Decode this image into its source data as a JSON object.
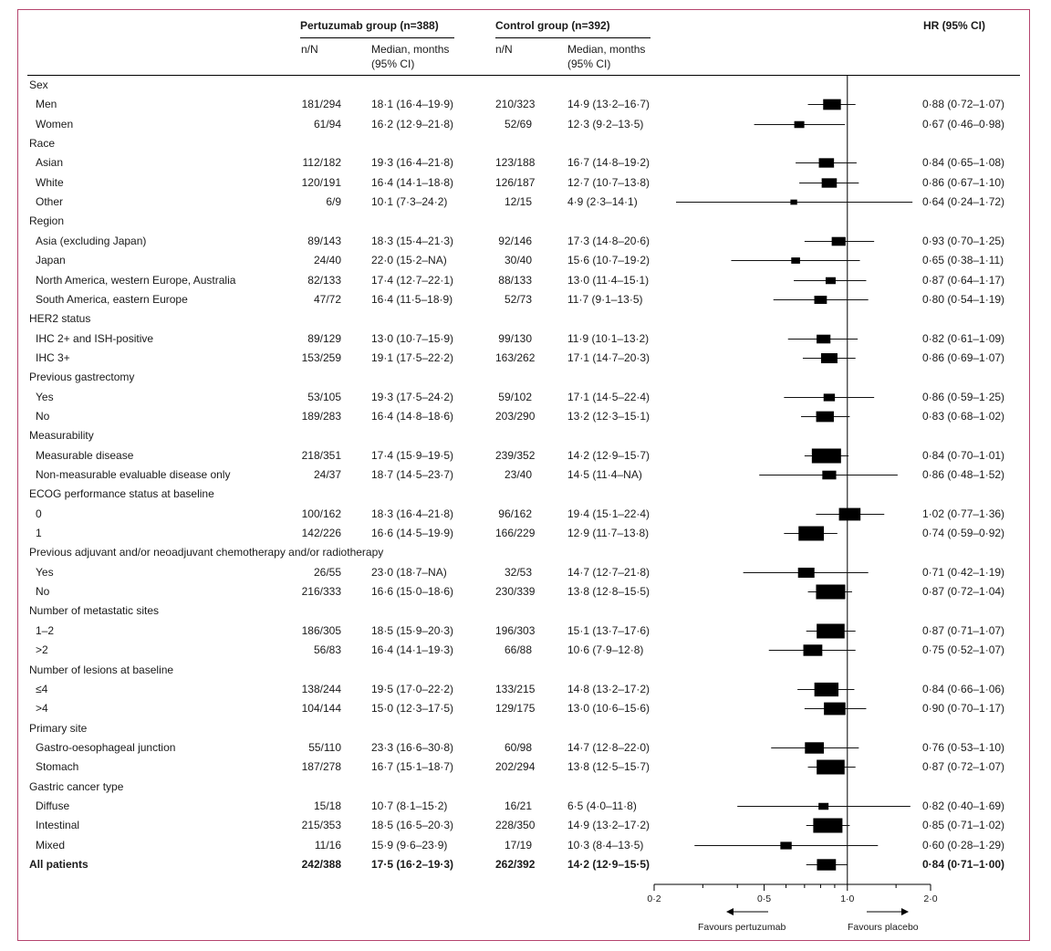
{
  "header": {
    "pertuzumab_group": "Pertuzumab group (n=388)",
    "control_group": "Control  group (n=392)",
    "hr_col": "HR (95% CI)",
    "nN": "n/N",
    "median_line1": "Median, months",
    "median_line2": "(95% CI)"
  },
  "rows": [
    {
      "type": "group",
      "label": "Sex"
    },
    {
      "type": "sub",
      "label": "Men",
      "p_n": "181/294",
      "p_med": "18·1 (16·4–19·9)",
      "c_n": "210/323",
      "c_med": "14·9 (13·2–16·7)",
      "hr_text": "0·88 (0·72–1·07)",
      "hr": 0.88,
      "lo": 0.72,
      "hi": 1.07,
      "w": 0.55
    },
    {
      "type": "sub",
      "label": "Women",
      "p_n": "61/94",
      "p_med": "16·2 (12·9–21·8)",
      "c_n": "52/69",
      "c_med": "12·3 (9·2–13·5)",
      "hr_text": "0·67 (0·46–0·98)",
      "hr": 0.67,
      "lo": 0.46,
      "hi": 0.98,
      "w": 0.25
    },
    {
      "type": "group",
      "label": "Race"
    },
    {
      "type": "sub",
      "label": "Asian",
      "p_n": "112/182",
      "p_med": "19·3 (16·4–21·8)",
      "c_n": "123/188",
      "c_med": "16·7 (14·8–19·2)",
      "hr_text": "0·84 (0·65–1·08)",
      "hr": 0.84,
      "lo": 0.65,
      "hi": 1.08,
      "w": 0.45
    },
    {
      "type": "sub",
      "label": "White",
      "p_n": "120/191",
      "p_med": "16·4 (14·1–18·8)",
      "c_n": "126/187",
      "c_med": "12·7 (10·7–13·8)",
      "hr_text": "0·86 (0·67–1·10)",
      "hr": 0.86,
      "lo": 0.67,
      "hi": 1.1,
      "w": 0.45
    },
    {
      "type": "sub",
      "label": "Other",
      "p_n": "6/9",
      "p_med": "10·1 (7·3–24·2)",
      "c_n": "12/15",
      "c_med": "4·9 (2·3–14·1)",
      "hr_text": "0·64 (0·24–1·72)",
      "hr": 0.64,
      "lo": 0.24,
      "hi": 1.72,
      "w": 0.12
    },
    {
      "type": "group",
      "label": "Region"
    },
    {
      "type": "sub",
      "label": "Asia (excluding Japan)",
      "p_n": "89/143",
      "p_med": "18·3 (15·4–21·3)",
      "c_n": "92/146",
      "c_med": "17·3 (14·8–20·6)",
      "hr_text": "0·93 (0·70–1·25)",
      "hr": 0.93,
      "lo": 0.7,
      "hi": 1.25,
      "w": 0.4
    },
    {
      "type": "sub",
      "label": "Japan",
      "p_n": "24/40",
      "p_med": "22·0 (15·2–NA)",
      "c_n": "30/40",
      "c_med": "15·6 (10·7–19·2)",
      "hr_text": "0·65 (0·38–1·11)",
      "hr": 0.65,
      "lo": 0.38,
      "hi": 1.11,
      "w": 0.2
    },
    {
      "type": "sub",
      "label": "North America, western Europe, Australia",
      "p_n": "82/133",
      "p_med": "17·4 (12·7–22·1)",
      "c_n": "88/133",
      "c_med": "13·0 (11·4–15·1)",
      "hr_text": "0·87 (0·64–1·17)",
      "hr": 0.87,
      "lo": 0.64,
      "hi": 1.17,
      "w": 0.25
    },
    {
      "type": "sub",
      "label": "South America, eastern Europe",
      "p_n": "47/72",
      "p_med": "16·4 (11·5–18·9)",
      "c_n": "52/73",
      "c_med": "11·7 (9·1–13·5)",
      "hr_text": "0·80 (0·54–1·19)",
      "hr": 0.8,
      "lo": 0.54,
      "hi": 1.19,
      "w": 0.35
    },
    {
      "type": "group",
      "label": "HER2 status"
    },
    {
      "type": "sub",
      "label": "IHC 2+ and ISH-positive",
      "p_n": "89/129",
      "p_med": "13·0 (10·7–15·9)",
      "c_n": "99/130",
      "c_med": "11·9 (10·1–13·2)",
      "hr_text": "0·82 (0·61–1·09)",
      "hr": 0.82,
      "lo": 0.61,
      "hi": 1.09,
      "w": 0.4
    },
    {
      "type": "sub",
      "label": "IHC 3+",
      "p_n": "153/259",
      "p_med": "19·1 (17·5–22·2)",
      "c_n": "163/262",
      "c_med": "17·1 (14·7–20·3)",
      "hr_text": "0·86 (0·69–1·07)",
      "hr": 0.86,
      "lo": 0.69,
      "hi": 1.07,
      "w": 0.5
    },
    {
      "type": "group",
      "label": "Previous gastrectomy"
    },
    {
      "type": "sub",
      "label": "Yes",
      "p_n": "53/105",
      "p_med": "19·3 (17·5–24·2)",
      "c_n": "59/102",
      "c_med": "17·1 (14·5–22·4)",
      "hr_text": "0·86 (0·59–1·25)",
      "hr": 0.86,
      "lo": 0.59,
      "hi": 1.25,
      "w": 0.3
    },
    {
      "type": "sub",
      "label": "No",
      "p_n": "189/283",
      "p_med": "16·4 (14·8–18·6)",
      "c_n": "203/290",
      "c_med": "13·2 (12·3–15·1)",
      "hr_text": "0·83 (0·68–1·02)",
      "hr": 0.83,
      "lo": 0.68,
      "hi": 1.02,
      "w": 0.55
    },
    {
      "type": "group",
      "label": "Measurability"
    },
    {
      "type": "sub",
      "label": "Measurable disease",
      "p_n": "218/351",
      "p_med": "17·4 (15·9–19·5)",
      "c_n": "239/352",
      "c_med": "14·2 (12·9–15·7)",
      "hr_text": "0·84 (0·70–1·01)",
      "hr": 0.84,
      "lo": 0.7,
      "hi": 1.01,
      "w": 1.0
    },
    {
      "type": "sub",
      "label": "Non-measurable evaluable disease only",
      "p_n": "24/37",
      "p_med": "18·7 (14·5–23·7)",
      "c_n": "23/40",
      "c_med": "14·5 (11·4–NA)",
      "hr_text": "0·86 (0·48–1·52)",
      "hr": 0.86,
      "lo": 0.48,
      "hi": 1.52,
      "w": 0.4
    },
    {
      "type": "group",
      "label": "ECOG performance status at baseline"
    },
    {
      "type": "sub",
      "label": "0",
      "p_n": "100/162",
      "p_med": "18·3 (16·4–21·8)",
      "c_n": "96/162",
      "c_med": "19·4 (15·1–22·4)",
      "hr_text": "1·02 (0·77–1·36)",
      "hr": 1.02,
      "lo": 0.77,
      "hi": 1.36,
      "w": 0.7
    },
    {
      "type": "sub",
      "label": "1",
      "p_n": "142/226",
      "p_med": "16·6 (14·5–19·9)",
      "c_n": "166/229",
      "c_med": "12·9 (11·7–13·8)",
      "hr_text": "0·74 (0·59–0·92)",
      "hr": 0.74,
      "lo": 0.59,
      "hi": 0.92,
      "w": 0.85
    },
    {
      "type": "group",
      "label": "Previous adjuvant and/or neoadjuvant chemotherapy and/or radiotherapy"
    },
    {
      "type": "sub",
      "label": "Yes",
      "p_n": "26/55",
      "p_med": "23·0 (18·7–NA)",
      "c_n": "32/53",
      "c_med": "14·7 (12·7–21·8)",
      "hr_text": "0·71 (0·42–1·19)",
      "hr": 0.71,
      "lo": 0.42,
      "hi": 1.19,
      "w": 0.5
    },
    {
      "type": "sub",
      "label": "No",
      "p_n": "216/333",
      "p_med": "16·6 (15·0–18·6)",
      "c_n": "230/339",
      "c_med": "13·8 (12·8–15·5)",
      "hr_text": "0·87 (0·72–1·04)",
      "hr": 0.87,
      "lo": 0.72,
      "hi": 1.04,
      "w": 1.0
    },
    {
      "type": "group",
      "label": "Number of metastatic sites"
    },
    {
      "type": "sub",
      "label": "1–2",
      "p_n": "186/305",
      "p_med": "18·5 (15·9–20·3)",
      "c_n": "196/303",
      "c_med": "15·1 (13·7–17·6)",
      "hr_text": "0·87 (0·71–1·07)",
      "hr": 0.87,
      "lo": 0.71,
      "hi": 1.07,
      "w": 0.95
    },
    {
      "type": "sub",
      "label": ">2",
      "p_n": "56/83",
      "p_med": "16·4 (14·1–19·3)",
      "c_n": "66/88",
      "c_med": "10·6 (7·9–12·8)",
      "hr_text": "0·75 (0·52–1·07)",
      "hr": 0.75,
      "lo": 0.52,
      "hi": 1.07,
      "w": 0.6
    },
    {
      "type": "group",
      "label": "Number of lesions at baseline"
    },
    {
      "type": "sub",
      "label": "≤4",
      "p_n": "138/244",
      "p_med": "19·5 (17·0–22·2)",
      "c_n": "133/215",
      "c_med": "14·8 (13·2–17·2)",
      "hr_text": "0·84 (0·66–1·06)",
      "hr": 0.84,
      "lo": 0.66,
      "hi": 1.06,
      "w": 0.8
    },
    {
      "type": "sub",
      "label": ">4",
      "p_n": "104/144",
      "p_med": "15·0 (12·3–17·5)",
      "c_n": "129/175",
      "c_med": "13·0 (10·6–15·6)",
      "hr_text": "0·90 (0·70–1·17)",
      "hr": 0.9,
      "lo": 0.7,
      "hi": 1.17,
      "w": 0.7
    },
    {
      "type": "group",
      "label": "Primary site"
    },
    {
      "type": "sub",
      "label": "Gastro-oesophageal junction",
      "p_n": "55/110",
      "p_med": "23·3 (16·6–30·8)",
      "c_n": "60/98",
      "c_med": "14·7 (12·8–22·0)",
      "hr_text": "0·76 (0·53–1·10)",
      "hr": 0.76,
      "lo": 0.53,
      "hi": 1.1,
      "w": 0.6
    },
    {
      "type": "sub",
      "label": "Stomach",
      "p_n": "187/278",
      "p_med": "16·7 (15·1–18·7)",
      "c_n": "202/294",
      "c_med": "13·8 (12·5–15·7)",
      "hr_text": "0·87 (0·72–1·07)",
      "hr": 0.87,
      "lo": 0.72,
      "hi": 1.07,
      "w": 0.95
    },
    {
      "type": "group",
      "label": "Gastric cancer type"
    },
    {
      "type": "sub",
      "label": "Diffuse",
      "p_n": "15/18",
      "p_med": "10·7 (8·1–15·2)",
      "c_n": "16/21",
      "c_med": "6·5 (4·0–11·8)",
      "hr_text": "0·82 (0·40–1·69)",
      "hr": 0.82,
      "lo": 0.4,
      "hi": 1.69,
      "w": 0.25
    },
    {
      "type": "sub",
      "label": "Intestinal",
      "p_n": "215/353",
      "p_med": "18·5 (16·5–20·3)",
      "c_n": "228/350",
      "c_med": "14·9 (13·2–17·2)",
      "hr_text": "0·85 (0·71–1·02)",
      "hr": 0.85,
      "lo": 0.71,
      "hi": 1.02,
      "w": 1.0
    },
    {
      "type": "sub",
      "label": "Mixed",
      "p_n": "11/16",
      "p_med": "15·9 (9·6–23·9)",
      "c_n": "17/19",
      "c_med": "10·3 (8·4–13·5)",
      "hr_text": "0·60 (0·28–1·29)",
      "hr": 0.6,
      "lo": 0.28,
      "hi": 1.29,
      "w": 0.3
    },
    {
      "type": "total",
      "label": "All patients",
      "p_n": "242/388",
      "p_med": "17·5 (16·2–19·3)",
      "c_n": "262/392",
      "c_med": "14·2 (12·9–15·5)",
      "hr_text": "0·84 (0·71–1·00)",
      "hr": 0.84,
      "lo": 0.71,
      "hi": 1.0,
      "w": 0.6
    }
  ],
  "chart_data": {
    "type": "forest",
    "x_scale": "log",
    "xlim": [
      0.2,
      2.0
    ],
    "x_ticks": [
      0.2,
      0.5,
      1.0,
      2.0
    ],
    "x_tick_labels": [
      "0·2",
      "0·5",
      "1·0",
      "2·0"
    ],
    "reference_line": 1.0,
    "favours_left": "Favours pertuzumab",
    "favours_right": "Favours placebo"
  }
}
